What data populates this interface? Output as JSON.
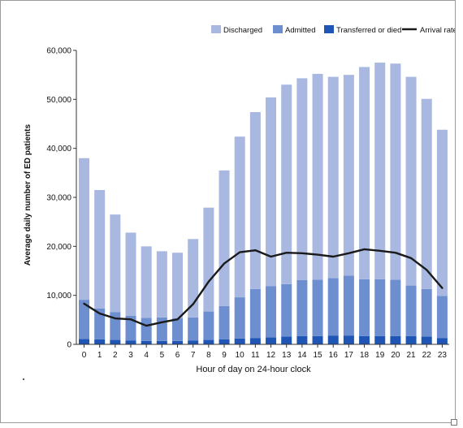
{
  "chart_data": {
    "type": "bar",
    "stacked": true,
    "ylabel": "Average daily number of ED patients",
    "xlabel": "Hour of day on 24-hour clock",
    "ylim": [
      0,
      60000
    ],
    "yticks": [
      "0",
      "10,000",
      "20,000",
      "30,000",
      "40,000",
      "50,000",
      "60,000"
    ],
    "yticks_values": [
      0,
      10000,
      20000,
      30000,
      40000,
      50000,
      60000
    ],
    "categories": [
      "0",
      "1",
      "2",
      "3",
      "4",
      "5",
      "6",
      "7",
      "8",
      "9",
      "10",
      "11",
      "12",
      "13",
      "14",
      "15",
      "16",
      "17",
      "18",
      "19",
      "20",
      "21",
      "22",
      "23"
    ],
    "totals": [
      38000,
      31500,
      26500,
      22800,
      20000,
      19000,
      18700,
      21500,
      27900,
      35500,
      42400,
      47400,
      50400,
      53000,
      54300,
      55200,
      54600,
      55000,
      56600,
      57500,
      57300,
      54600,
      50100,
      43800
    ],
    "series": [
      {
        "name": "Transferred or died",
        "color": "#1f55b4",
        "values": [
          1100,
          1000,
          900,
          800,
          700,
          700,
          700,
          800,
          900,
          1000,
          1200,
          1300,
          1400,
          1600,
          1700,
          1700,
          1800,
          1800,
          1700,
          1700,
          1700,
          1700,
          1600,
          1300
        ]
      },
      {
        "name": "Admitted",
        "color": "#6d8fd0",
        "values": [
          8000,
          6300,
          5700,
          5000,
          4700,
          4800,
          4600,
          4700,
          5800,
          6800,
          8400,
          10000,
          10500,
          10700,
          11400,
          11500,
          11700,
          12200,
          11600,
          11600,
          11500,
          10300,
          9700,
          8600
        ]
      },
      {
        "name": "Discharged",
        "color": "#a9b8e0",
        "values": [
          28900,
          24200,
          19900,
          17000,
          14600,
          13500,
          13400,
          16000,
          21200,
          27700,
          32800,
          36100,
          38500,
          40700,
          41200,
          42000,
          41100,
          41000,
          43300,
          44200,
          44100,
          42600,
          38800,
          33900
        ]
      }
    ],
    "line": {
      "name": "Arrival rate",
      "color": "#1a1a1a",
      "values": [
        8300,
        6300,
        5300,
        5100,
        3800,
        4500,
        5100,
        8200,
        12800,
        16500,
        18800,
        19200,
        17900,
        18700,
        18600,
        18300,
        17900,
        18600,
        19400,
        19100,
        18700,
        17600,
        15200,
        11500
      ]
    },
    "legend": {
      "placement": "top-right",
      "items": [
        {
          "name": "Discharged",
          "color": "#a9b8e0",
          "kind": "box"
        },
        {
          "name": "Admitted",
          "color": "#6d8fd0",
          "kind": "box"
        },
        {
          "name": "Transferred or died",
          "color": "#1f55b4",
          "kind": "box"
        },
        {
          "name": "Arrival rate",
          "color": "#1a1a1a",
          "kind": "line"
        }
      ]
    }
  }
}
